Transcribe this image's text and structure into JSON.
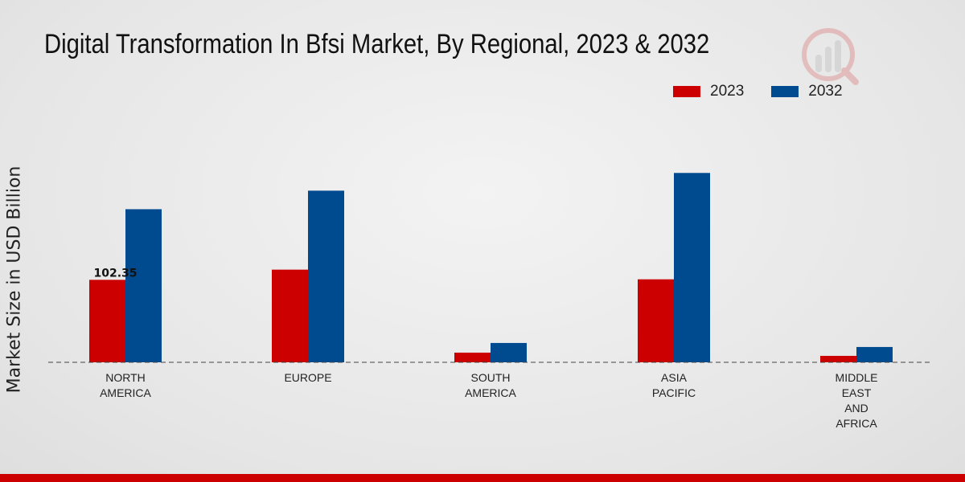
{
  "chart_data": {
    "type": "bar",
    "title": "Digital Transformation In Bfsi Market, By Regional, 2023 & 2032",
    "xlabel": "",
    "ylabel": "Market Size in USD Billion",
    "categories": [
      [
        "NORTH",
        "AMERICA"
      ],
      [
        "EUROPE"
      ],
      [
        "SOUTH",
        "AMERICA"
      ],
      [
        "ASIA",
        "PACIFIC"
      ],
      [
        "MIDDLE",
        "EAST",
        "AND",
        "AFRICA"
      ]
    ],
    "series": [
      {
        "name": "2023",
        "color": "#cc0000",
        "values": [
          102.35,
          115.0,
          12.0,
          103.0,
          8.0
        ]
      },
      {
        "name": "2032",
        "color": "#004a8f",
        "values": [
          190.0,
          213.0,
          24.0,
          235.0,
          19.0
        ]
      }
    ],
    "data_labels": [
      {
        "series": 0,
        "index": 0,
        "text": "102.35"
      }
    ],
    "ylim": [
      0,
      330
    ],
    "legend_position": "top-right",
    "grid": false
  },
  "legend": {
    "items": [
      "2023",
      "2032"
    ]
  }
}
